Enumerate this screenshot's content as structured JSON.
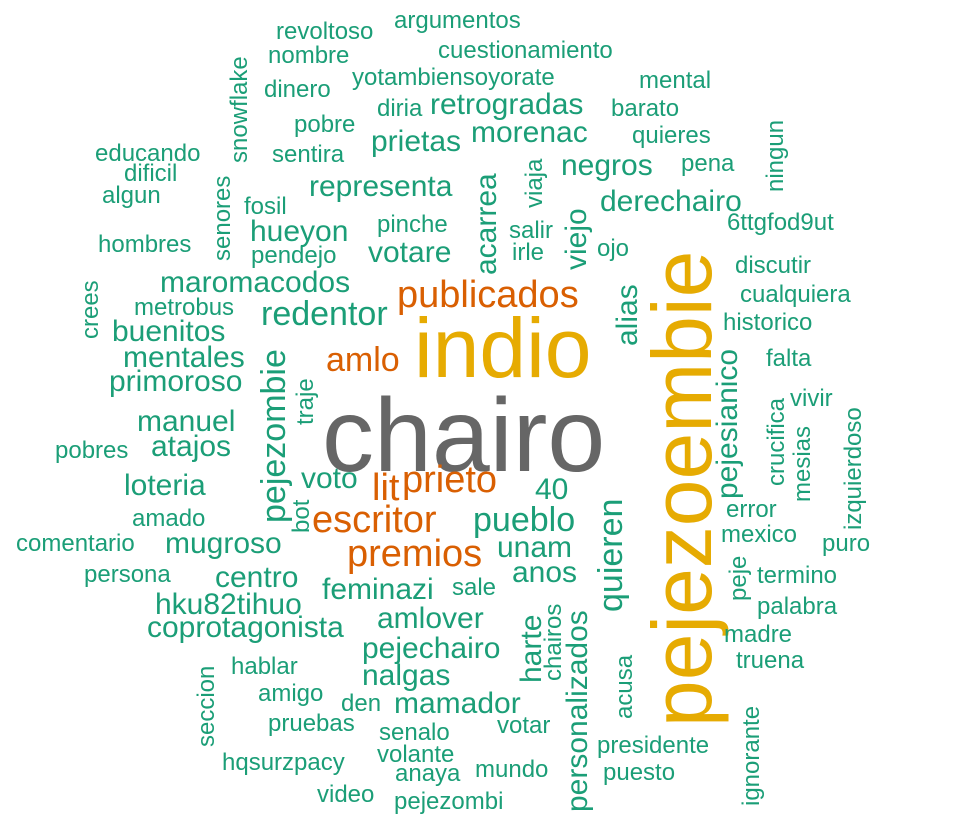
{
  "colors": {
    "green": "#1b9e77",
    "orange": "#d95f02",
    "gold": "#e6ab02",
    "gray": "#666666"
  },
  "words": {
    "chairo": "chairo",
    "pejezoembie": "pejezoembie",
    "indio": "indio",
    "publicados": "publicados",
    "amlo": "amlo",
    "prieto": "prieto",
    "lit": "lit",
    "escritor": "escritor",
    "premios": "premios",
    "revoltoso": "revoltoso",
    "argumentos": "argumentos",
    "nombre": "nombre",
    "cuestionamiento": "cuestionamiento",
    "snowflake": "snowflake",
    "yotambiensoyorate": "yotambiensoyorate",
    "mental": "mental",
    "dinero": "dinero",
    "diria": "diria",
    "retrogradas": "retrogradas",
    "barato": "barato",
    "pobre": "pobre",
    "morenac": "morenac",
    "quieres": "quieres",
    "ningun": "ningun",
    "educando": "educando",
    "sentira": "sentira",
    "prietas": "prietas",
    "negros": "negros",
    "pena": "pena",
    "dificil": "dificil",
    "acarrea": "acarrea",
    "viaja": "viaja",
    "algun": "algun",
    "senores": "senores",
    "representa": "representa",
    "derechairo": "derechairo",
    "fosil": "fosil",
    "pinche": "pinche",
    "salir": "salir",
    "6ttgfod9ut": "6ttgfod9ut",
    "hombres": "hombres",
    "hueyon": "hueyon",
    "votare": "votare",
    "irle": "irle",
    "viejo": "viejo",
    "ojo": "ojo",
    "pendejo": "pendejo",
    "discutir": "discutir",
    "crees": "crees",
    "maromacodos": "maromacodos",
    "metrobus": "metrobus",
    "redentor": "redentor",
    "alias": "alias",
    "cualquiera": "cualquiera",
    "buenitos": "buenitos",
    "historico": "historico",
    "mentales": "mentales",
    "pejesianico": "pejesianico",
    "falta": "falta",
    "primoroso": "primoroso",
    "pejezombie": "pejezombie",
    "traje": "traje",
    "crucifica": "crucifica",
    "vivir": "vivir",
    "izquierdoso": "izquierdoso",
    "manuel": "manuel",
    "mesias": "mesias",
    "atajos": "atajos",
    "pobres": "pobres",
    "voto": "voto",
    "loteria": "loteria",
    "bot": "bot",
    "40": "40",
    "quieren": "quieren",
    "error": "error",
    "amado": "amado",
    "pueblo": "pueblo",
    "mexico": "mexico",
    "comentario": "comentario",
    "mugroso": "mugroso",
    "unam": "unam",
    "puro": "puro",
    "peje": "peje",
    "persona": "persona",
    "centro": "centro",
    "anos": "anos",
    "termino": "termino",
    "feminazi": "feminazi",
    "sale": "sale",
    "chairos": "chairos",
    "hku82tihuo": "hku82tihuo",
    "palabra": "palabra",
    "amlover": "amlover",
    "coprotagonista": "coprotagonista",
    "harte": "harte",
    "madre": "madre",
    "pejechairo": "pejechairo",
    "personalizados": "personalizados",
    "seccion": "seccion",
    "hablar": "hablar",
    "nalgas": "nalgas",
    "truena": "truena",
    "acusa": "acusa",
    "amigo": "amigo",
    "mamador": "mamador",
    "den": "den",
    "ignorante": "ignorante",
    "pruebas": "pruebas",
    "votar": "votar",
    "senalo": "senalo",
    "presidente": "presidente",
    "hqsurzpacy": "hqsurzpacy",
    "volante": "volante",
    "anaya": "anaya",
    "mundo": "mundo",
    "puesto": "puesto",
    "video": "video",
    "pejezombi": "pejezombi"
  }
}
